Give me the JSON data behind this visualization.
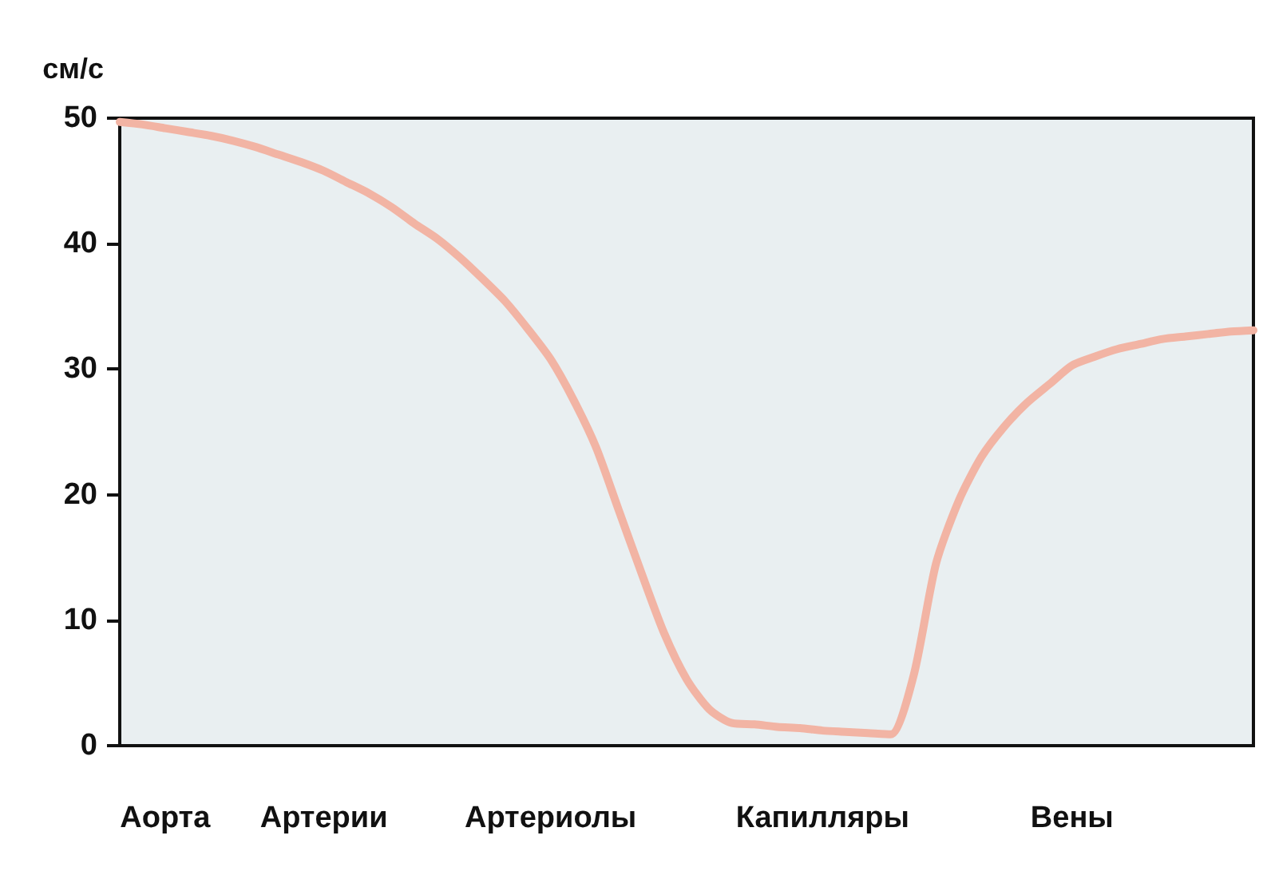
{
  "chart_data": {
    "type": "line",
    "ylabel": "см/с",
    "categories": [
      null,
      null,
      "Аорта",
      null,
      null,
      null,
      null,
      null,
      null,
      "Артерии",
      null,
      null,
      null,
      null,
      null,
      null,
      null,
      null,
      null,
      "Артериолы",
      null,
      null,
      null,
      null,
      null,
      null,
      null,
      null,
      null,
      null,
      null,
      "Капилляры",
      null,
      null,
      null,
      null,
      null,
      null,
      null,
      null,
      null,
      null,
      "Вены",
      null,
      null,
      null,
      null,
      null,
      null,
      null,
      null
    ],
    "ylim": [
      0,
      50
    ],
    "yticks": [
      0,
      10,
      20,
      30,
      40,
      50
    ],
    "grid": false,
    "marker": "none",
    "line_style": "solid",
    "series": [
      {
        "color": "#f2b4a4",
        "values": [
          49.7,
          49.5,
          49.2,
          48.9,
          48.6,
          48.2,
          47.7,
          47.1,
          46.5,
          45.8,
          44.9,
          44.0,
          42.9,
          41.6,
          40.4,
          38.9,
          37.2,
          35.4,
          33.2,
          30.8,
          27.6,
          23.8,
          18.8,
          13.8,
          9.0,
          5.3,
          2.9,
          1.8,
          1.7,
          1.5,
          1.4,
          1.2,
          1.1,
          1.0,
          0.9,
          5.5,
          14.5,
          19.5,
          23.0,
          25.4,
          27.3,
          28.8,
          30.3,
          31.0,
          31.6,
          32.0,
          32.4,
          32.6,
          32.8,
          33.0,
          33.1
        ]
      }
    ]
  }
}
